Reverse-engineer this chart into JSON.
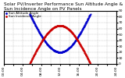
{
  "title": "Solar PV/Inverter Performance Sun Altitude Angle & Sun Incidence Angle on PV Panels",
  "legend_entries": [
    "Sun Altitude Angle",
    "Sun Incidence Angle"
  ],
  "blue_color": "#0000cc",
  "red_color": "#cc0000",
  "bg_color": "#ffffff",
  "grid_color": "#888888",
  "ylim": [
    0,
    90
  ],
  "yticks": [
    0,
    10,
    20,
    30,
    40,
    50,
    60,
    70,
    80,
    90
  ],
  "xlim": [
    0,
    24
  ],
  "xtick_hours": [
    0,
    2,
    4,
    6,
    8,
    10,
    12,
    14,
    16,
    18,
    20,
    22,
    24
  ],
  "dawn": 5.5,
  "dusk": 18.5,
  "alt_max": 65,
  "inc_max": 85,
  "inc_min": 20,
  "title_fontsize": 4.2,
  "tick_fontsize": 3.2,
  "legend_fontsize": 3.0,
  "figsize": [
    1.6,
    1.0
  ],
  "dpi": 100
}
